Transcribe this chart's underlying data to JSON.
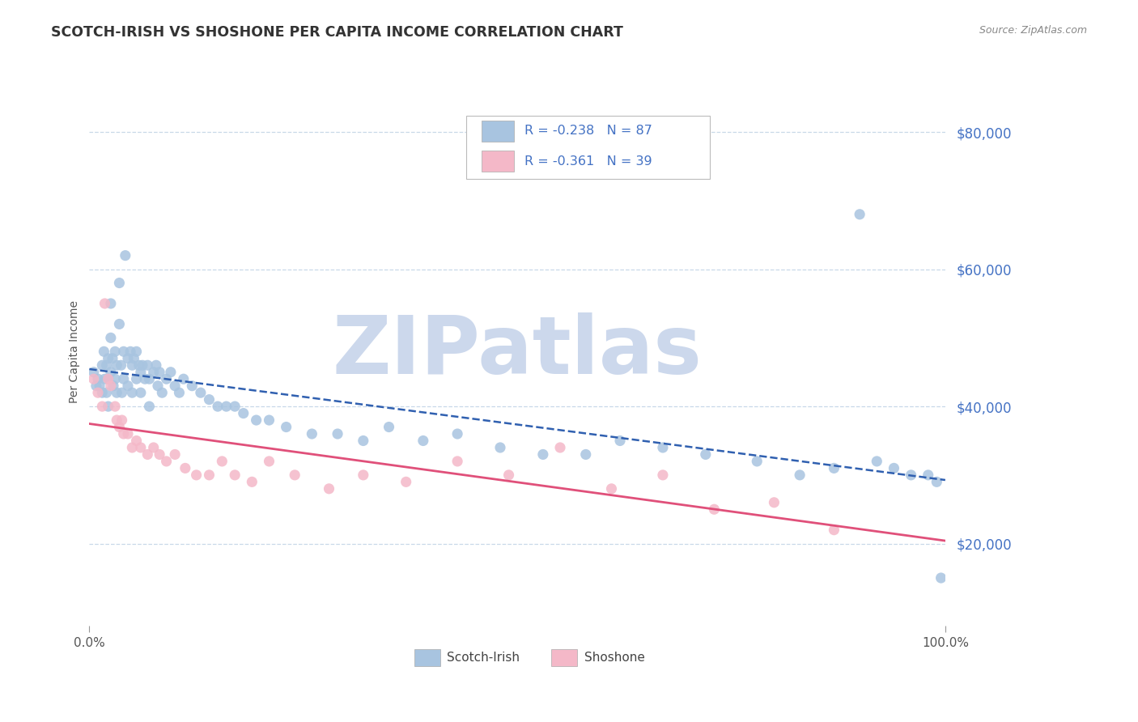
{
  "title": "SCOTCH-IRISH VS SHOSHONE PER CAPITA INCOME CORRELATION CHART",
  "source_text": "Source: ZipAtlas.com",
  "ylabel": "Per Capita Income",
  "ytick_values": [
    20000,
    40000,
    60000,
    80000
  ],
  "xlim": [
    0.0,
    1.0
  ],
  "ylim": [
    8000,
    88000
  ],
  "scotch_irish_color": "#a8c4e0",
  "shoshone_color": "#f4b8c8",
  "scotch_irish_line_color": "#3060b0",
  "shoshone_line_color": "#e0507a",
  "grid_color": "#c8d8e8",
  "background_color": "#ffffff",
  "watermark_text": "ZIPatlas",
  "watermark_color": "#ccd8ec",
  "scotch_irish_x": [
    0.005,
    0.008,
    0.01,
    0.012,
    0.015,
    0.015,
    0.017,
    0.018,
    0.02,
    0.02,
    0.022,
    0.022,
    0.022,
    0.025,
    0.025,
    0.025,
    0.027,
    0.028,
    0.03,
    0.03,
    0.032,
    0.032,
    0.035,
    0.035,
    0.037,
    0.038,
    0.04,
    0.04,
    0.042,
    0.045,
    0.045,
    0.048,
    0.05,
    0.05,
    0.052,
    0.055,
    0.055,
    0.058,
    0.06,
    0.06,
    0.062,
    0.065,
    0.068,
    0.07,
    0.07,
    0.075,
    0.078,
    0.08,
    0.082,
    0.085,
    0.09,
    0.095,
    0.1,
    0.105,
    0.11,
    0.12,
    0.13,
    0.14,
    0.15,
    0.16,
    0.17,
    0.18,
    0.195,
    0.21,
    0.23,
    0.26,
    0.29,
    0.32,
    0.35,
    0.39,
    0.43,
    0.48,
    0.53,
    0.58,
    0.62,
    0.67,
    0.72,
    0.78,
    0.83,
    0.87,
    0.9,
    0.92,
    0.94,
    0.96,
    0.98,
    0.99,
    0.995
  ],
  "scotch_irish_y": [
    45000,
    43000,
    44000,
    43000,
    46000,
    42000,
    48000,
    44000,
    46000,
    42000,
    47000,
    44000,
    40000,
    55000,
    50000,
    45000,
    47000,
    43000,
    48000,
    44000,
    46000,
    42000,
    58000,
    52000,
    46000,
    42000,
    48000,
    44000,
    62000,
    47000,
    43000,
    48000,
    46000,
    42000,
    47000,
    48000,
    44000,
    46000,
    45000,
    42000,
    46000,
    44000,
    46000,
    44000,
    40000,
    45000,
    46000,
    43000,
    45000,
    42000,
    44000,
    45000,
    43000,
    42000,
    44000,
    43000,
    42000,
    41000,
    40000,
    40000,
    40000,
    39000,
    38000,
    38000,
    37000,
    36000,
    36000,
    35000,
    37000,
    35000,
    36000,
    34000,
    33000,
    33000,
    35000,
    34000,
    33000,
    32000,
    30000,
    31000,
    68000,
    32000,
    31000,
    30000,
    30000,
    29000,
    15000
  ],
  "shoshone_x": [
    0.005,
    0.01,
    0.015,
    0.018,
    0.022,
    0.025,
    0.03,
    0.032,
    0.035,
    0.038,
    0.04,
    0.045,
    0.05,
    0.055,
    0.06,
    0.068,
    0.075,
    0.082,
    0.09,
    0.1,
    0.112,
    0.125,
    0.14,
    0.155,
    0.17,
    0.19,
    0.21,
    0.24,
    0.28,
    0.32,
    0.37,
    0.43,
    0.49,
    0.55,
    0.61,
    0.67,
    0.73,
    0.8,
    0.87
  ],
  "shoshone_y": [
    44000,
    42000,
    40000,
    55000,
    44000,
    43000,
    40000,
    38000,
    37000,
    38000,
    36000,
    36000,
    34000,
    35000,
    34000,
    33000,
    34000,
    33000,
    32000,
    33000,
    31000,
    30000,
    30000,
    32000,
    30000,
    29000,
    32000,
    30000,
    28000,
    30000,
    29000,
    32000,
    30000,
    34000,
    28000,
    30000,
    25000,
    26000,
    22000
  ],
  "legend_R1": "R = -0.238",
  "legend_N1": "N = 87",
  "legend_R2": "R = -0.361",
  "legend_N2": "N = 39",
  "legend_text_color": "#4472c4",
  "bottom_legend_label1": "Scotch-Irish",
  "bottom_legend_label2": "Shoshone"
}
